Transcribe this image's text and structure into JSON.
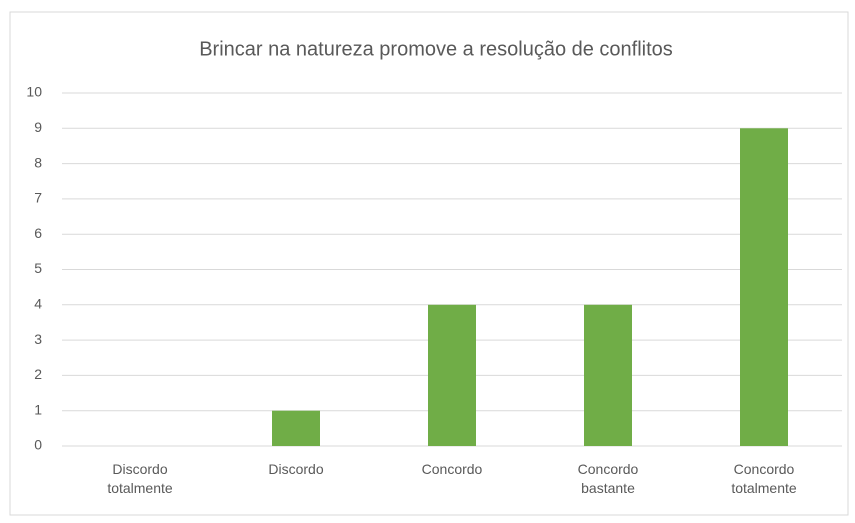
{
  "chart_data": {
    "type": "bar",
    "title": "Brincar na natureza promove a resolução de conflitos",
    "categories": [
      "Discordo totalmente",
      "Discordo",
      "Concordo",
      "Concordo bastante",
      "Concordo totalmente"
    ],
    "values": [
      0,
      1,
      4,
      4,
      9
    ],
    "color": "#70ad47",
    "ylim": [
      0,
      10
    ],
    "yticks": [
      0,
      1,
      2,
      3,
      4,
      5,
      6,
      7,
      8,
      9,
      10
    ],
    "grid": true
  }
}
